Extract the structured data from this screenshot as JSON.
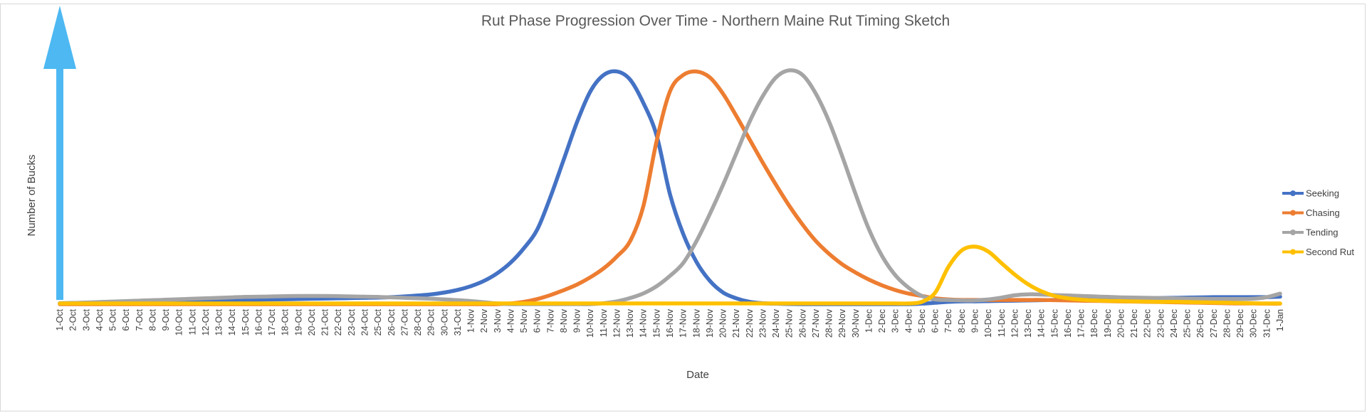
{
  "chart_data": {
    "type": "line",
    "title": "Rut Phase Progression Over Time - Northern Maine Rut Timing Sketch",
    "xlabel": "Date",
    "ylabel": "Number of Bucks",
    "legend_position": "right",
    "grid": false,
    "arrow_color": "#4db8f2",
    "categories": [
      "1-Oct",
      "2-Oct",
      "3-Oct",
      "4-Oct",
      "5-Oct",
      "6-Oct",
      "7-Oct",
      "8-Oct",
      "9-Oct",
      "10-Oct",
      "11-Oct",
      "12-Oct",
      "13-Oct",
      "14-Oct",
      "15-Oct",
      "16-Oct",
      "17-Oct",
      "18-Oct",
      "19-Oct",
      "20-Oct",
      "21-Oct",
      "22-Oct",
      "23-Oct",
      "24-Oct",
      "25-Oct",
      "26-Oct",
      "27-Oct",
      "28-Oct",
      "29-Oct",
      "30-Oct",
      "31-Oct",
      "1-Nov",
      "2-Nov",
      "3-Nov",
      "4-Nov",
      "5-Nov",
      "6-Nov",
      "7-Nov",
      "8-Nov",
      "9-Nov",
      "10-Nov",
      "11-Nov",
      "12-Nov",
      "13-Nov",
      "14-Nov",
      "15-Nov",
      "16-Nov",
      "17-Nov",
      "18-Nov",
      "19-Nov",
      "20-Nov",
      "21-Nov",
      "22-Nov",
      "23-Nov",
      "24-Nov",
      "25-Nov",
      "26-Nov",
      "27-Nov",
      "28-Nov",
      "29-Nov",
      "30-Nov",
      "1-Dec",
      "2-Dec",
      "3-Dec",
      "4-Dec",
      "5-Dec",
      "6-Dec",
      "7-Dec",
      "8-Dec",
      "9-Dec",
      "10-Dec",
      "11-Dec",
      "12-Dec",
      "13-Dec",
      "14-Dec",
      "15-Dec",
      "16-Dec",
      "17-Dec",
      "18-Dec",
      "19-Dec",
      "20-Dec",
      "21-Dec",
      "22-Dec",
      "23-Dec",
      "24-Dec",
      "25-Dec",
      "26-Dec",
      "27-Dec",
      "28-Dec",
      "29-Dec",
      "30-Dec",
      "31-Dec",
      "1-Jan"
    ],
    "ylim": [
      0,
      100
    ],
    "series": [
      {
        "name": "Seeking",
        "color": "#4472c4",
        "values": [
          0.4,
          0.5,
          0.6,
          0.7,
          0.8,
          0.9,
          1.0,
          1.1,
          1.2,
          1.3,
          1.4,
          1.5,
          1.6,
          1.7,
          1.8,
          1.9,
          2.0,
          2.1,
          2.2,
          2.3,
          2.4,
          2.5,
          2.6,
          2.7,
          2.8,
          3.0,
          3.3,
          3.7,
          4.2,
          5.0,
          6.1,
          7.7,
          10.0,
          13.3,
          17.8,
          24.0,
          32.0,
          46.0,
          62.0,
          78.0,
          91.0,
          98.0,
          99.5,
          96.0,
          86.0,
          72.0,
          47.0,
          30.0,
          18.0,
          10.0,
          5.0,
          2.5,
          1.0,
          0.4,
          0.2,
          0.1,
          0,
          0,
          0,
          0,
          0,
          0,
          0,
          0,
          0,
          0.2,
          0.6,
          1.0,
          1.2,
          1.2,
          1.3,
          1.4,
          1.5,
          1.6,
          1.7,
          1.8,
          1.9,
          2.0,
          2.1,
          2.2,
          2.3,
          2.4,
          2.5,
          2.6,
          2.7,
          2.8,
          2.9,
          3.0,
          3.0,
          3.0,
          3.0,
          3.0,
          3.2
        ]
      },
      {
        "name": "Chasing",
        "color": "#ed7d31",
        "values": [
          0,
          0,
          0,
          0,
          0,
          0,
          0,
          0,
          0,
          0,
          0,
          0,
          0,
          0,
          0,
          0,
          0,
          0,
          0,
          0,
          0,
          0,
          0,
          0,
          0,
          0,
          0,
          0,
          0,
          0,
          0,
          0,
          0,
          0,
          0.3,
          1.0,
          2.2,
          3.9,
          6.0,
          8.4,
          11.5,
          15.3,
          20.4,
          27.0,
          42.0,
          70.0,
          91.0,
          98.0,
          99.5,
          97.0,
          90.0,
          80.5,
          70.5,
          60.5,
          51.0,
          42.0,
          34.0,
          27.0,
          21.5,
          17.0,
          13.5,
          10.5,
          8.0,
          6.0,
          4.5,
          3.5,
          2.5,
          2.0,
          1.8,
          1.8,
          1.8,
          1.8,
          1.8,
          1.8,
          1.8,
          1.7,
          1.6,
          1.5,
          1.4,
          1.3,
          1.2,
          1.1,
          1.0,
          0.9,
          0.8,
          0.7,
          0.6,
          0.5,
          0.4,
          0.3,
          0.3,
          0.2,
          0.2
        ]
      },
      {
        "name": "Tending",
        "color": "#a5a5a5",
        "values": [
          0.3,
          0.5,
          0.7,
          0.9,
          1.1,
          1.3,
          1.5,
          1.7,
          1.9,
          2.1,
          2.3,
          2.5,
          2.7,
          2.9,
          3.1,
          3.2,
          3.3,
          3.4,
          3.5,
          3.5,
          3.5,
          3.4,
          3.3,
          3.2,
          3.1,
          2.9,
          2.7,
          2.5,
          2.3,
          2.0,
          1.7,
          1.3,
          0.8,
          0.3,
          0,
          0,
          0,
          0,
          0,
          0,
          0,
          0.4,
          1.2,
          2.6,
          4.6,
          7.7,
          12.1,
          17.6,
          27.0,
          38.5,
          51.0,
          64.5,
          78.0,
          89.0,
          97.0,
          100.0,
          98.0,
          90.0,
          78.0,
          63.0,
          47.0,
          32.0,
          20.5,
          12.3,
          7.0,
          3.5,
          2.0,
          1.8,
          1.6,
          1.6,
          2.0,
          2.8,
          3.8,
          4.2,
          4.1,
          3.9,
          3.7,
          3.5,
          3.3,
          3.1,
          2.9,
          2.8,
          2.7,
          2.6,
          2.5,
          2.4,
          2.3,
          2.2,
          2.2,
          2.2,
          2.3,
          3.0,
          4.5
        ]
      },
      {
        "name": "Second Rut",
        "color": "#ffc000",
        "values": [
          0.3,
          0.3,
          0.3,
          0.3,
          0.3,
          0.3,
          0.3,
          0.3,
          0.3,
          0.3,
          0.3,
          0.3,
          0.3,
          0.3,
          0.3,
          0.3,
          0.3,
          0.3,
          0.3,
          0.3,
          0.3,
          0.3,
          0.3,
          0.3,
          0.3,
          0.3,
          0.3,
          0.3,
          0.3,
          0.3,
          0.3,
          0.3,
          0.3,
          0.3,
          0.3,
          0.3,
          0.3,
          0.3,
          0.3,
          0.3,
          0.3,
          0.3,
          0.3,
          0.3,
          0.3,
          0.3,
          0.3,
          0.3,
          0.3,
          0.3,
          0.3,
          0.3,
          0.3,
          0.3,
          0.3,
          0.3,
          0.3,
          0.3,
          0.3,
          0.3,
          0.3,
          0.3,
          0.3,
          0.3,
          0.3,
          1.0,
          5.0,
          16.0,
          23.0,
          24.6,
          22.5,
          17.5,
          12.6,
          8.5,
          5.5,
          3.5,
          2.5,
          1.9,
          1.6,
          1.4,
          1.3,
          1.2,
          1.1,
          1.0,
          1.0,
          0.9,
          0.8,
          0.7,
          0.6,
          0.5,
          0.4,
          0.3,
          0.3
        ]
      }
    ]
  }
}
